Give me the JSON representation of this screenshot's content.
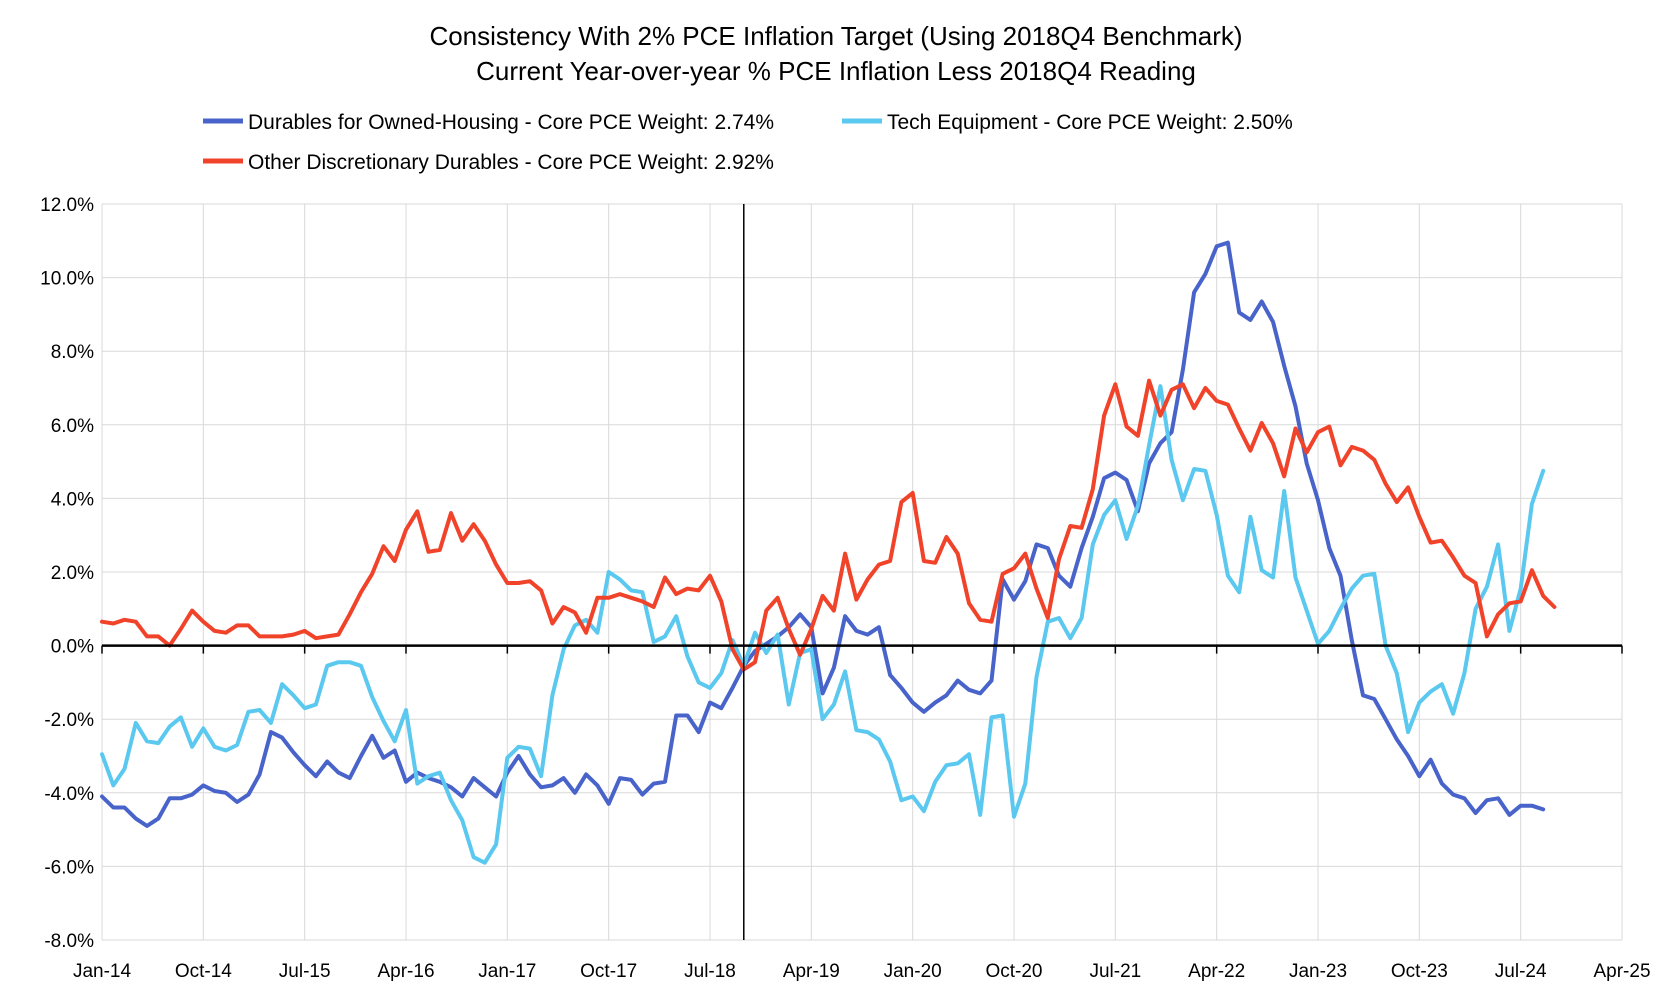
{
  "chart_data": {
    "type": "line",
    "title": "Consistency With 2% PCE Inflation Target (Using 2018Q4 Benchmark)",
    "subtitle": "Current Year-over-year % PCE Inflation Less 2018Q4 Reading",
    "xlabel": "",
    "ylabel": "",
    "x_ticks": [
      "Jan-14",
      "Oct-14",
      "Jul-15",
      "Apr-16",
      "Jan-17",
      "Oct-17",
      "Jul-18",
      "Apr-19",
      "Jan-20",
      "Oct-20",
      "Jul-21",
      "Apr-22",
      "Jan-23",
      "Oct-23",
      "Jul-24",
      "Apr-25"
    ],
    "y_ticks": [
      "12.0%",
      "10.0%",
      "8.0%",
      "6.0%",
      "4.0%",
      "2.0%",
      "0.0%",
      "-2.0%",
      "-4.0%",
      "-6.0%",
      "-8.0%"
    ],
    "ylim": [
      -8,
      12
    ],
    "x_range": [
      "2014-01",
      "2025-04"
    ],
    "benchmark_line": "2018-10",
    "grid": true,
    "legend_position": "top",
    "x_start": "2014-01",
    "series": [
      {
        "name": "Durables for Owned-Housing - Core PCE Weight: 2.74%",
        "color": "#4863c9",
        "values": [
          -4.1,
          -4.4,
          -4.4,
          -4.7,
          -4.9,
          -4.7,
          -4.15,
          -4.15,
          -4.05,
          -3.8,
          -3.95,
          -4.0,
          -4.25,
          -4.05,
          -3.5,
          -2.35,
          -2.5,
          -2.9,
          -3.25,
          -3.55,
          -3.15,
          -3.45,
          -3.6,
          -3.0,
          -2.45,
          -3.05,
          -2.85,
          -3.7,
          -3.45,
          -3.6,
          -3.7,
          -3.85,
          -4.1,
          -3.6,
          -3.85,
          -4.1,
          -3.45,
          -3.0,
          -3.5,
          -3.85,
          -3.8,
          -3.6,
          -4.0,
          -3.5,
          -3.8,
          -4.3,
          -3.6,
          -3.65,
          -4.05,
          -3.75,
          -3.7,
          -1.9,
          -1.9,
          -2.35,
          -1.55,
          -1.7,
          -1.15,
          -0.55,
          -0.15,
          0.05,
          0.25,
          0.5,
          0.85,
          0.5,
          -1.3,
          -0.6,
          0.8,
          0.4,
          0.3,
          0.5,
          -0.8,
          -1.15,
          -1.55,
          -1.8,
          -1.55,
          -1.35,
          -0.95,
          -1.2,
          -1.3,
          -0.95,
          1.8,
          1.25,
          1.75,
          2.75,
          2.65,
          1.9,
          1.6,
          2.65,
          3.5,
          4.55,
          4.7,
          4.5,
          3.65,
          4.95,
          5.5,
          5.8,
          7.5,
          9.6,
          10.1,
          10.85,
          10.95,
          9.05,
          8.85,
          9.35,
          8.8,
          7.6,
          6.5,
          4.95,
          3.95,
          2.65,
          1.9,
          0.15,
          -1.35,
          -1.45,
          -2.0,
          -2.55,
          -3.0,
          -3.55,
          -3.1,
          -3.75,
          -4.05,
          -4.15,
          -4.55,
          -4.2,
          -4.15,
          -4.6,
          -4.35,
          -4.35,
          -4.45
        ]
      },
      {
        "name": "Tech Equipment - Core PCE Weight: 2.50%",
        "color": "#5bc8ef",
        "values": [
          -2.95,
          -3.8,
          -3.35,
          -2.1,
          -2.6,
          -2.65,
          -2.2,
          -1.95,
          -2.75,
          -2.25,
          -2.75,
          -2.85,
          -2.7,
          -1.8,
          -1.75,
          -2.1,
          -1.05,
          -1.35,
          -1.7,
          -1.6,
          -0.55,
          -0.45,
          -0.45,
          -0.55,
          -1.4,
          -2.05,
          -2.6,
          -1.75,
          -3.75,
          -3.55,
          -3.45,
          -4.2,
          -4.75,
          -5.75,
          -5.9,
          -5.4,
          -3.05,
          -2.75,
          -2.8,
          -3.55,
          -1.35,
          -0.1,
          0.55,
          0.7,
          0.35,
          2.0,
          1.8,
          1.5,
          1.45,
          0.1,
          0.25,
          0.8,
          -0.3,
          -1.0,
          -1.15,
          -0.75,
          0.15,
          -0.55,
          0.35,
          -0.2,
          0.3,
          -1.6,
          -0.2,
          -0.1,
          -2.0,
          -1.6,
          -0.7,
          -2.3,
          -2.35,
          -2.55,
          -3.15,
          -4.2,
          -4.1,
          -4.5,
          -3.7,
          -3.25,
          -3.2,
          -2.95,
          -4.6,
          -1.95,
          -1.9,
          -4.65,
          -3.75,
          -0.85,
          0.65,
          0.75,
          0.2,
          0.75,
          2.75,
          3.55,
          3.95,
          2.9,
          3.8,
          5.45,
          7.05,
          5.05,
          3.95,
          4.8,
          4.75,
          3.55,
          1.9,
          1.45,
          3.5,
          2.05,
          1.85,
          4.2,
          1.85,
          0.95,
          0.05,
          0.4,
          1.0,
          1.55,
          1.9,
          1.95,
          0.0,
          -0.75,
          -2.35,
          -1.55,
          -1.25,
          -1.05,
          -1.85,
          -0.75,
          1.0,
          1.6,
          2.75,
          0.4,
          1.55,
          3.85,
          4.75
        ]
      },
      {
        "name": "Other Discretionary Durables - Core PCE Weight: 2.92%",
        "color": "#f0432a",
        "values": [
          0.65,
          0.6,
          0.7,
          0.65,
          0.25,
          0.25,
          0.0,
          0.45,
          0.95,
          0.65,
          0.4,
          0.35,
          0.55,
          0.55,
          0.25,
          0.25,
          0.25,
          0.3,
          0.4,
          0.2,
          0.25,
          0.3,
          0.85,
          1.45,
          1.95,
          2.7,
          2.3,
          3.15,
          3.65,
          2.55,
          2.6,
          3.6,
          2.85,
          3.3,
          2.85,
          2.2,
          1.7,
          1.7,
          1.75,
          1.5,
          0.6,
          1.05,
          0.9,
          0.35,
          1.3,
          1.3,
          1.4,
          1.3,
          1.2,
          1.05,
          1.85,
          1.4,
          1.55,
          1.5,
          1.9,
          1.2,
          -0.1,
          -0.65,
          -0.45,
          0.95,
          1.3,
          0.45,
          -0.25,
          0.45,
          1.35,
          0.95,
          2.5,
          1.25,
          1.8,
          2.2,
          2.3,
          3.9,
          4.15,
          2.3,
          2.25,
          2.95,
          2.5,
          1.15,
          0.7,
          0.65,
          1.95,
          2.1,
          2.5,
          1.55,
          0.75,
          2.35,
          3.25,
          3.2,
          4.25,
          6.25,
          7.1,
          5.95,
          5.7,
          7.2,
          6.25,
          6.95,
          7.1,
          6.45,
          7.0,
          6.65,
          6.55,
          5.9,
          5.3,
          6.05,
          5.5,
          4.6,
          5.9,
          5.25,
          5.8,
          5.95,
          4.9,
          5.4,
          5.3,
          5.05,
          4.4,
          3.9,
          4.3,
          3.5,
          2.8,
          2.85,
          2.4,
          1.9,
          1.7,
          0.25,
          0.85,
          1.15,
          1.2,
          2.05,
          1.35,
          1.05
        ]
      }
    ]
  }
}
